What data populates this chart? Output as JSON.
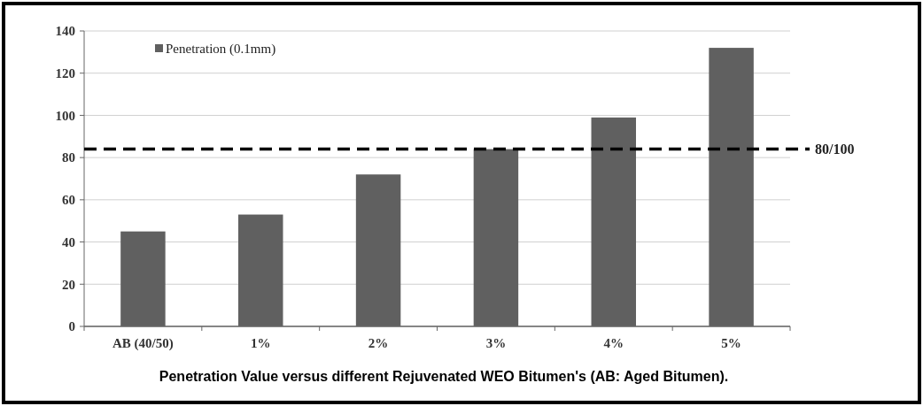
{
  "chart_data": {
    "type": "bar",
    "title": "Penetration Value versus different Rejuvenated WEO Bitumen's (AB: Aged Bitumen).",
    "categories": [
      "AB (40/50)",
      "1%",
      "2%",
      "3%",
      "4%",
      "5%"
    ],
    "series": [
      {
        "name": "Penetration (0.1mm)",
        "color": "#606060",
        "values": [
          45,
          53,
          72,
          84,
          99,
          132
        ]
      }
    ],
    "ylim": [
      0,
      140
    ],
    "yticks": [
      0,
      20,
      40,
      60,
      80,
      100,
      120,
      140
    ],
    "grid": "y",
    "legend": "top left",
    "ref_lines": [
      {
        "axis": "y",
        "value": 84,
        "color": "#000000",
        "line_style": "dashed"
      }
    ],
    "annotations": [
      "80/100"
    ]
  }
}
